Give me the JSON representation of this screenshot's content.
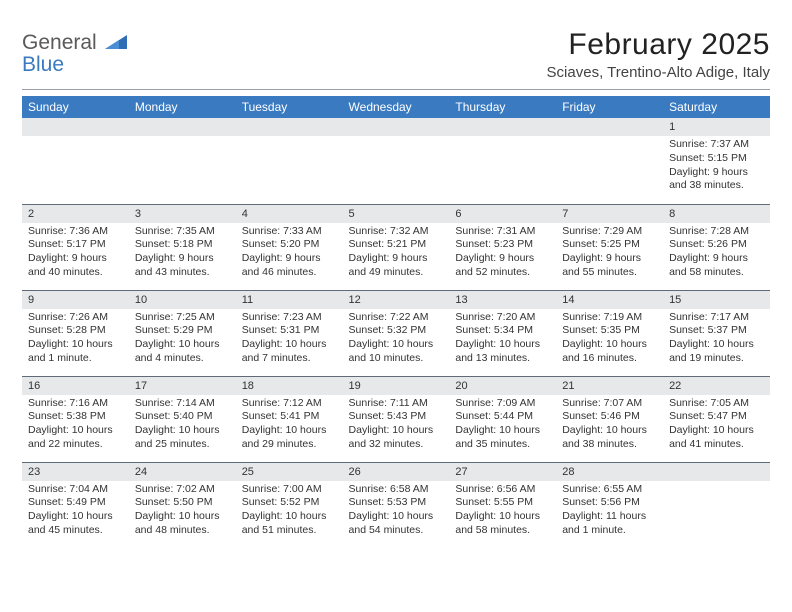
{
  "logo": {
    "line1": "General",
    "line2": "Blue"
  },
  "title": "February 2025",
  "subtitle": "Sciaves, Trentino-Alto Adige, Italy",
  "dayHeaders": [
    "Sunday",
    "Monday",
    "Tuesday",
    "Wednesday",
    "Thursday",
    "Friday",
    "Saturday"
  ],
  "colors": {
    "headerBg": "#3a7ac0",
    "headerText": "#ffffff",
    "dayNumBg": "#e6e8e9",
    "rowBorder": "#5f6b78",
    "logoBlue": "#3a7ac0",
    "logoGray": "#5a5a5a"
  },
  "weeks": [
    [
      null,
      null,
      null,
      null,
      null,
      null,
      {
        "n": "1",
        "lines": [
          "Sunrise: 7:37 AM",
          "Sunset: 5:15 PM",
          "Daylight: 9 hours",
          "and 38 minutes."
        ]
      }
    ],
    [
      {
        "n": "2",
        "lines": [
          "Sunrise: 7:36 AM",
          "Sunset: 5:17 PM",
          "Daylight: 9 hours",
          "and 40 minutes."
        ]
      },
      {
        "n": "3",
        "lines": [
          "Sunrise: 7:35 AM",
          "Sunset: 5:18 PM",
          "Daylight: 9 hours",
          "and 43 minutes."
        ]
      },
      {
        "n": "4",
        "lines": [
          "Sunrise: 7:33 AM",
          "Sunset: 5:20 PM",
          "Daylight: 9 hours",
          "and 46 minutes."
        ]
      },
      {
        "n": "5",
        "lines": [
          "Sunrise: 7:32 AM",
          "Sunset: 5:21 PM",
          "Daylight: 9 hours",
          "and 49 minutes."
        ]
      },
      {
        "n": "6",
        "lines": [
          "Sunrise: 7:31 AM",
          "Sunset: 5:23 PM",
          "Daylight: 9 hours",
          "and 52 minutes."
        ]
      },
      {
        "n": "7",
        "lines": [
          "Sunrise: 7:29 AM",
          "Sunset: 5:25 PM",
          "Daylight: 9 hours",
          "and 55 minutes."
        ]
      },
      {
        "n": "8",
        "lines": [
          "Sunrise: 7:28 AM",
          "Sunset: 5:26 PM",
          "Daylight: 9 hours",
          "and 58 minutes."
        ]
      }
    ],
    [
      {
        "n": "9",
        "lines": [
          "Sunrise: 7:26 AM",
          "Sunset: 5:28 PM",
          "Daylight: 10 hours",
          "and 1 minute."
        ]
      },
      {
        "n": "10",
        "lines": [
          "Sunrise: 7:25 AM",
          "Sunset: 5:29 PM",
          "Daylight: 10 hours",
          "and 4 minutes."
        ]
      },
      {
        "n": "11",
        "lines": [
          "Sunrise: 7:23 AM",
          "Sunset: 5:31 PM",
          "Daylight: 10 hours",
          "and 7 minutes."
        ]
      },
      {
        "n": "12",
        "lines": [
          "Sunrise: 7:22 AM",
          "Sunset: 5:32 PM",
          "Daylight: 10 hours",
          "and 10 minutes."
        ]
      },
      {
        "n": "13",
        "lines": [
          "Sunrise: 7:20 AM",
          "Sunset: 5:34 PM",
          "Daylight: 10 hours",
          "and 13 minutes."
        ]
      },
      {
        "n": "14",
        "lines": [
          "Sunrise: 7:19 AM",
          "Sunset: 5:35 PM",
          "Daylight: 10 hours",
          "and 16 minutes."
        ]
      },
      {
        "n": "15",
        "lines": [
          "Sunrise: 7:17 AM",
          "Sunset: 5:37 PM",
          "Daylight: 10 hours",
          "and 19 minutes."
        ]
      }
    ],
    [
      {
        "n": "16",
        "lines": [
          "Sunrise: 7:16 AM",
          "Sunset: 5:38 PM",
          "Daylight: 10 hours",
          "and 22 minutes."
        ]
      },
      {
        "n": "17",
        "lines": [
          "Sunrise: 7:14 AM",
          "Sunset: 5:40 PM",
          "Daylight: 10 hours",
          "and 25 minutes."
        ]
      },
      {
        "n": "18",
        "lines": [
          "Sunrise: 7:12 AM",
          "Sunset: 5:41 PM",
          "Daylight: 10 hours",
          "and 29 minutes."
        ]
      },
      {
        "n": "19",
        "lines": [
          "Sunrise: 7:11 AM",
          "Sunset: 5:43 PM",
          "Daylight: 10 hours",
          "and 32 minutes."
        ]
      },
      {
        "n": "20",
        "lines": [
          "Sunrise: 7:09 AM",
          "Sunset: 5:44 PM",
          "Daylight: 10 hours",
          "and 35 minutes."
        ]
      },
      {
        "n": "21",
        "lines": [
          "Sunrise: 7:07 AM",
          "Sunset: 5:46 PM",
          "Daylight: 10 hours",
          "and 38 minutes."
        ]
      },
      {
        "n": "22",
        "lines": [
          "Sunrise: 7:05 AM",
          "Sunset: 5:47 PM",
          "Daylight: 10 hours",
          "and 41 minutes."
        ]
      }
    ],
    [
      {
        "n": "23",
        "lines": [
          "Sunrise: 7:04 AM",
          "Sunset: 5:49 PM",
          "Daylight: 10 hours",
          "and 45 minutes."
        ]
      },
      {
        "n": "24",
        "lines": [
          "Sunrise: 7:02 AM",
          "Sunset: 5:50 PM",
          "Daylight: 10 hours",
          "and 48 minutes."
        ]
      },
      {
        "n": "25",
        "lines": [
          "Sunrise: 7:00 AM",
          "Sunset: 5:52 PM",
          "Daylight: 10 hours",
          "and 51 minutes."
        ]
      },
      {
        "n": "26",
        "lines": [
          "Sunrise: 6:58 AM",
          "Sunset: 5:53 PM",
          "Daylight: 10 hours",
          "and 54 minutes."
        ]
      },
      {
        "n": "27",
        "lines": [
          "Sunrise: 6:56 AM",
          "Sunset: 5:55 PM",
          "Daylight: 10 hours",
          "and 58 minutes."
        ]
      },
      {
        "n": "28",
        "lines": [
          "Sunrise: 6:55 AM",
          "Sunset: 5:56 PM",
          "Daylight: 11 hours",
          "and 1 minute."
        ]
      },
      null
    ]
  ]
}
